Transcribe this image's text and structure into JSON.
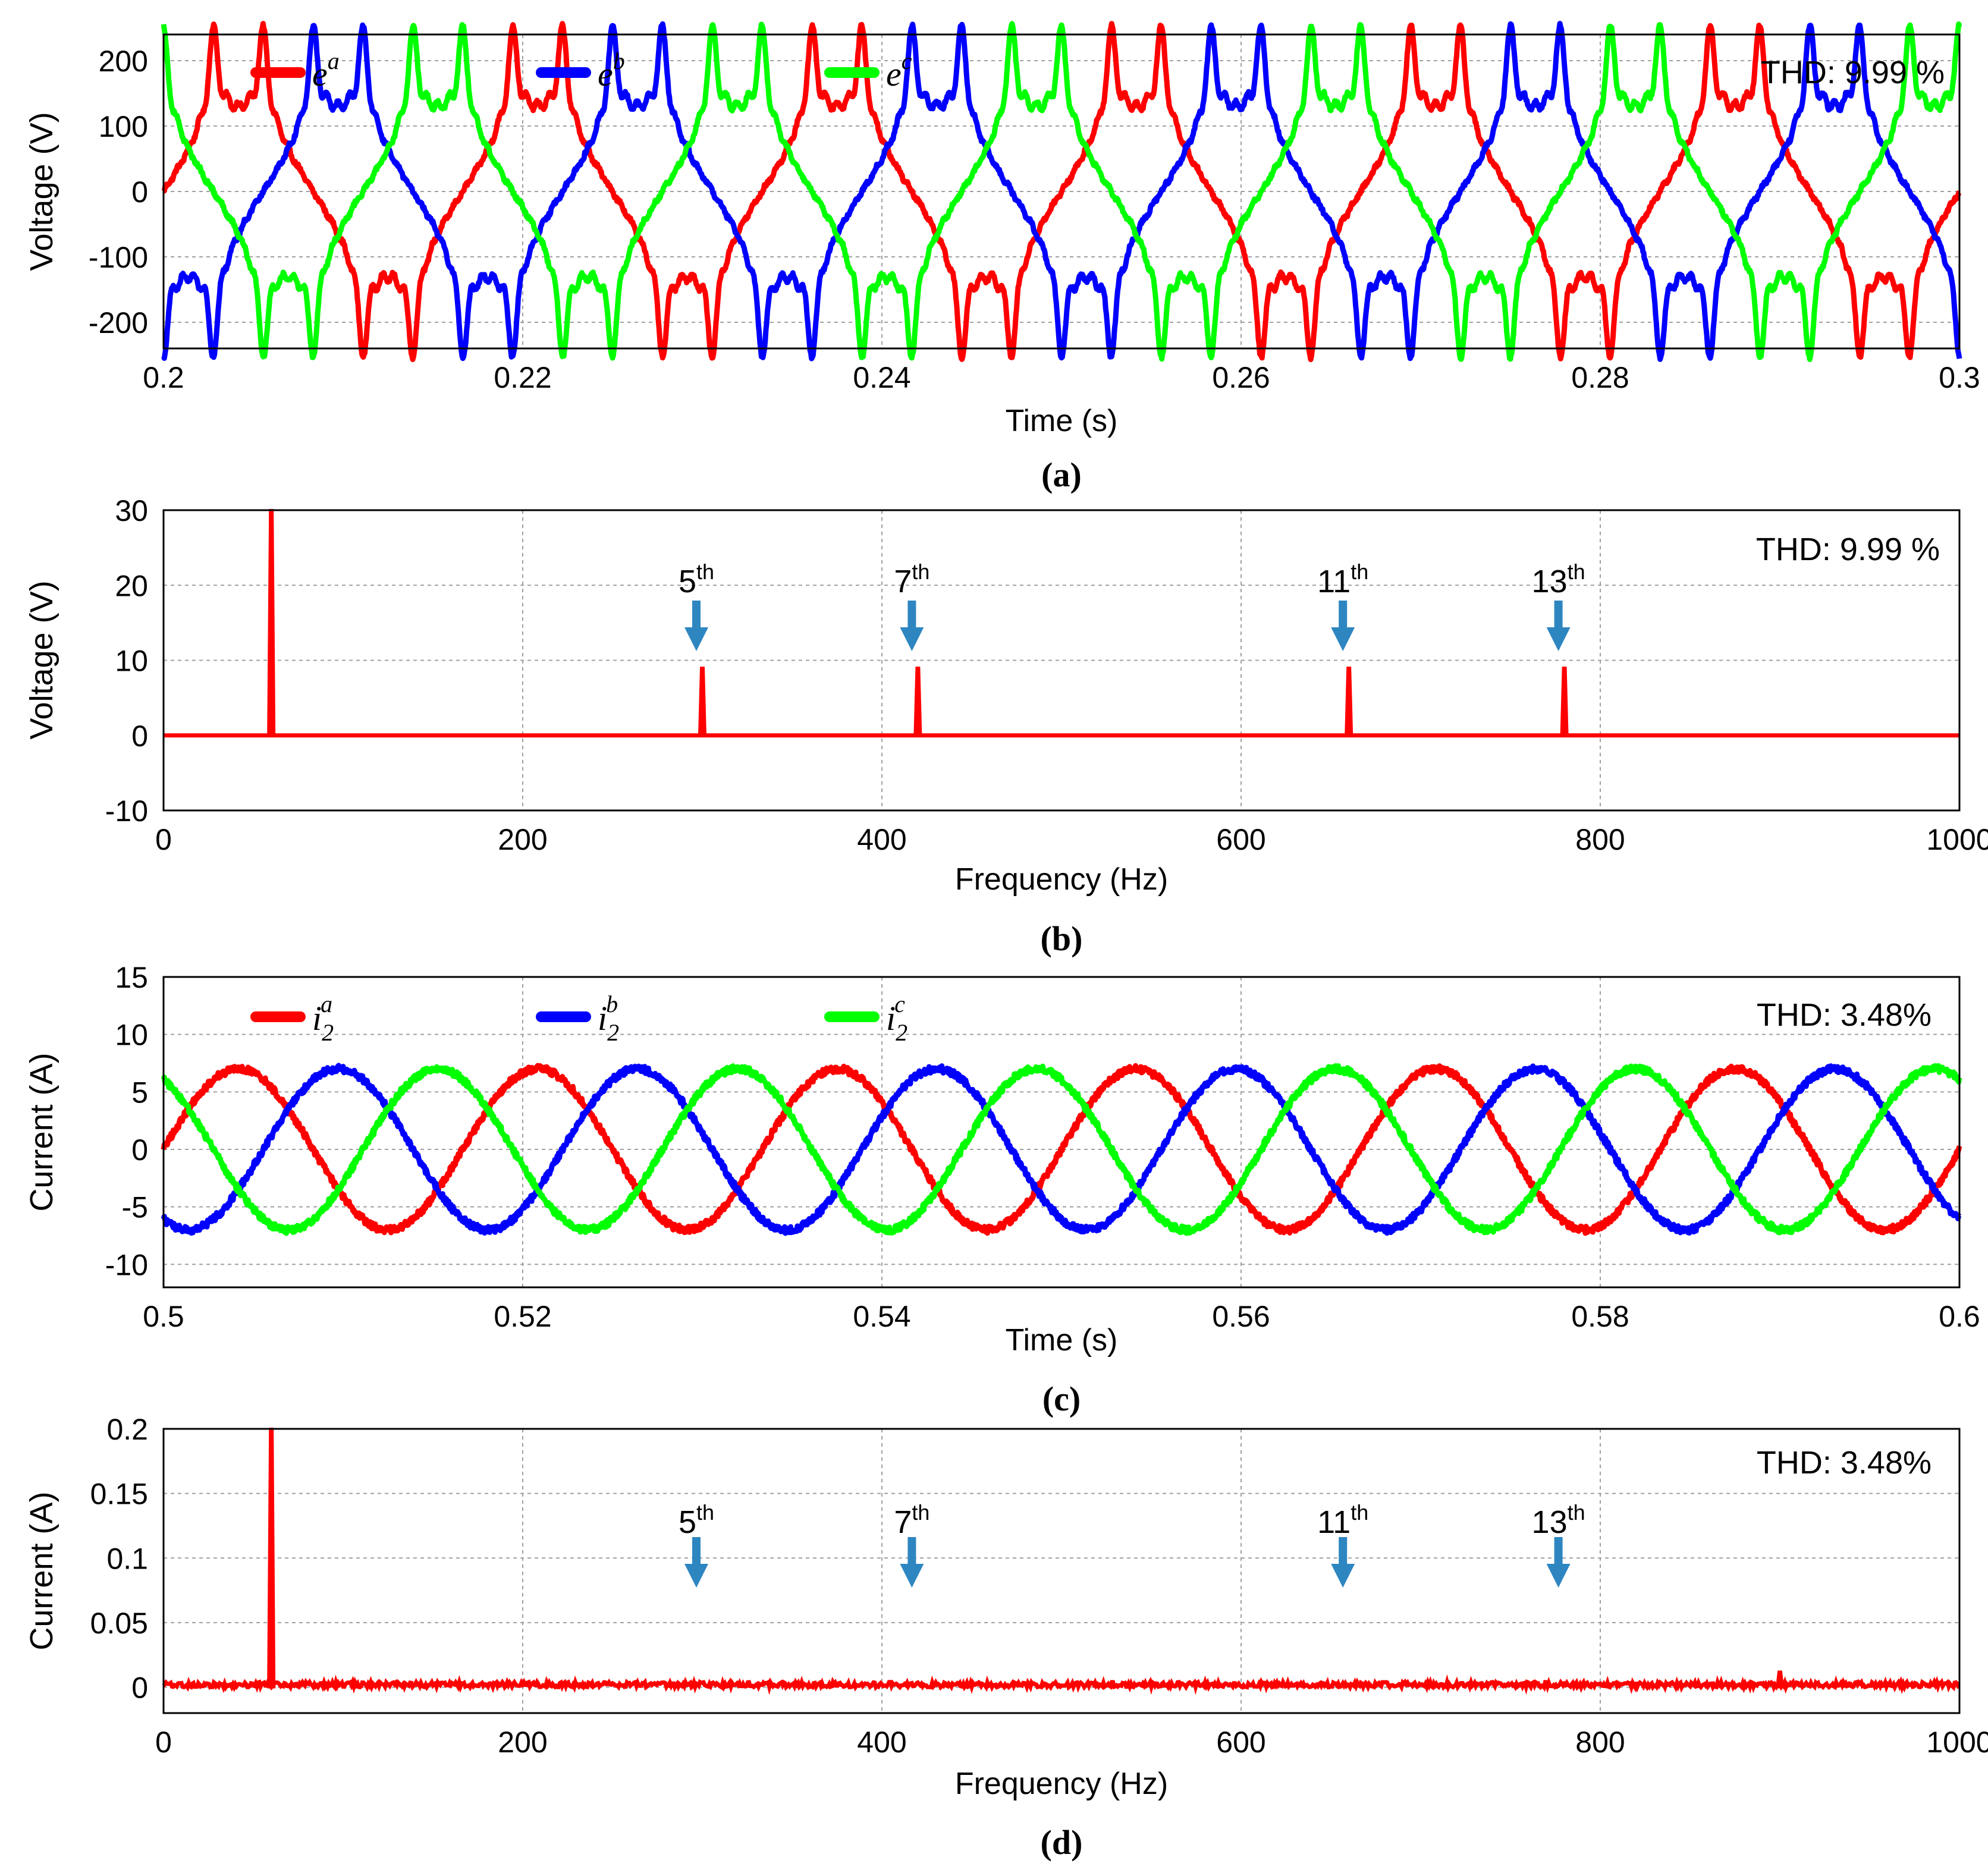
{
  "chart_data": [
    {
      "id": "a",
      "type": "line",
      "caption": "(a)",
      "xlabel": "Time (s)",
      "ylabel": "Voltage (V)",
      "xlim": [
        0.2,
        0.3
      ],
      "ylim": [
        -240,
        240
      ],
      "xticks": [
        0.2,
        0.22,
        0.24,
        0.26,
        0.28,
        0.3
      ],
      "yticks": [
        -200,
        -100,
        0,
        100,
        200
      ],
      "xtick_labels": [
        "0.2",
        "0.22",
        "0.24",
        "0.26",
        "0.28",
        "0.3"
      ],
      "ytick_labels": [
        "-200",
        "-100",
        "0",
        "100",
        "200"
      ],
      "grid": true,
      "annotation": "THD: 9.99 %",
      "signal": {
        "kind": "stepped",
        "amplitude": 180,
        "frequency_hz": 60,
        "noise": 3
      },
      "series": [
        {
          "name": "e^a",
          "base": "e",
          "sup": "a",
          "sub": "",
          "color": "#ff0000",
          "phase_deg": 0
        },
        {
          "name": "e^b",
          "base": "e",
          "sup": "b",
          "sub": "",
          "color": "#0000ff",
          "phase_deg": -120
        },
        {
          "name": "e^c",
          "base": "e",
          "sup": "c",
          "sub": "",
          "color": "#00ff00",
          "phase_deg": 120
        }
      ]
    },
    {
      "id": "b",
      "type": "bar",
      "caption": "(b)",
      "xlabel": "Frequency (Hz)",
      "ylabel": "Voltage (V)",
      "xlim": [
        0,
        1000
      ],
      "ylim": [
        -10,
        30
      ],
      "xticks": [
        0,
        200,
        400,
        600,
        800,
        1000
      ],
      "yticks": [
        -10,
        0,
        10,
        20,
        30
      ],
      "xtick_labels": [
        "0",
        "200",
        "400",
        "600",
        "800",
        "1000"
      ],
      "ytick_labels": [
        "-10",
        "0",
        "10",
        "20",
        "30"
      ],
      "grid": true,
      "annotation": "THD: 9.99 %",
      "color": "#ff0000",
      "noise": 0,
      "spectrum": [
        {
          "freq": 60,
          "value": 30
        },
        {
          "freq": 300,
          "value": 9
        },
        {
          "freq": 420,
          "value": 9
        },
        {
          "freq": 660,
          "value": 9
        },
        {
          "freq": 780,
          "value": 9
        }
      ],
      "harmonic_markers": [
        {
          "freq": 300,
          "order": "5",
          "suffix": "th"
        },
        {
          "freq": 420,
          "order": "7",
          "suffix": "th"
        },
        {
          "freq": 660,
          "order": "11",
          "suffix": "th"
        },
        {
          "freq": 780,
          "order": "13",
          "suffix": "th"
        }
      ]
    },
    {
      "id": "c",
      "type": "line",
      "caption": "(c)",
      "xlabel": "Time (s)",
      "ylabel": "Current (A)",
      "xlim": [
        0.5,
        0.6
      ],
      "ylim": [
        -12,
        15
      ],
      "xticks": [
        0.5,
        0.52,
        0.54,
        0.56,
        0.58,
        0.6
      ],
      "yticks": [
        -10,
        -5,
        0,
        5,
        10,
        15
      ],
      "xtick_labels": [
        "0.5",
        "0.52",
        "0.54",
        "0.56",
        "0.58",
        "0.6"
      ],
      "ytick_labels": [
        "-10",
        "-5",
        "0",
        "5",
        "10",
        "15"
      ],
      "grid": true,
      "annotation": "THD: 3.48%",
      "signal": {
        "kind": "sine",
        "amplitude": 7,
        "frequency_hz": 60,
        "noise": 0.3
      },
      "series": [
        {
          "name": "i_2^a",
          "base": "i",
          "sup": "a",
          "sub": "2",
          "color": "#ff0000",
          "phase_deg": 0
        },
        {
          "name": "i_2^b",
          "base": "i",
          "sup": "b",
          "sub": "2",
          "color": "#0000ff",
          "phase_deg": -120
        },
        {
          "name": "i_2^c",
          "base": "i",
          "sup": "c",
          "sub": "2",
          "color": "#00ff00",
          "phase_deg": 120
        }
      ]
    },
    {
      "id": "d",
      "type": "bar",
      "caption": "(d)",
      "xlabel": "Frequency (Hz)",
      "ylabel": "Current (A)",
      "xlim": [
        0,
        1000
      ],
      "ylim": [
        -0.02,
        0.2
      ],
      "xticks": [
        0,
        200,
        400,
        600,
        800,
        1000
      ],
      "yticks": [
        0,
        0.05,
        0.1,
        0.15,
        0.2
      ],
      "xtick_labels": [
        "0",
        "200",
        "400",
        "600",
        "800",
        "1000"
      ],
      "ytick_labels": [
        "0",
        "0.05",
        "0.1",
        "0.15",
        "0.2"
      ],
      "grid": true,
      "annotation": "THD: 3.48%",
      "color": "#ff0000",
      "noise": 0.004,
      "spectrum": [
        {
          "freq": 60,
          "value": 0.2
        },
        {
          "freq": 900,
          "value": 0.012
        }
      ],
      "harmonic_markers": [
        {
          "freq": 300,
          "order": "5",
          "suffix": "th"
        },
        {
          "freq": 420,
          "order": "7",
          "suffix": "th"
        },
        {
          "freq": 660,
          "order": "11",
          "suffix": "th"
        },
        {
          "freq": 780,
          "order": "13",
          "suffix": "th"
        }
      ]
    }
  ],
  "colors": {
    "grid": "#a0a0a0",
    "arrow": "#2e86c1",
    "axis": "#000000"
  }
}
